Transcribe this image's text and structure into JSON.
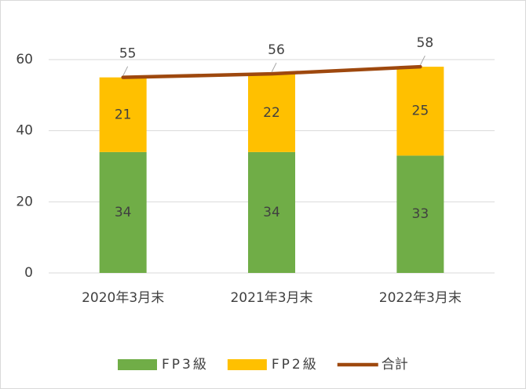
{
  "chart_data": {
    "type": "bar",
    "stacked": true,
    "categories": [
      "2020年3月末",
      "2021年3月末",
      "2022年3月末"
    ],
    "series": [
      {
        "name": "FP3級",
        "type": "bar",
        "color": "#70ad47",
        "values": [
          34,
          34,
          33
        ]
      },
      {
        "name": "FP2級",
        "type": "bar",
        "color": "#ffc000",
        "values": [
          21,
          22,
          25
        ]
      },
      {
        "name": "合計",
        "type": "line",
        "color": "#9e480e",
        "values": [
          55,
          56,
          58
        ]
      }
    ],
    "ylim": [
      0,
      70
    ],
    "yticks": [
      0,
      20,
      40,
      60
    ],
    "grid": true,
    "legend": "bottom"
  }
}
